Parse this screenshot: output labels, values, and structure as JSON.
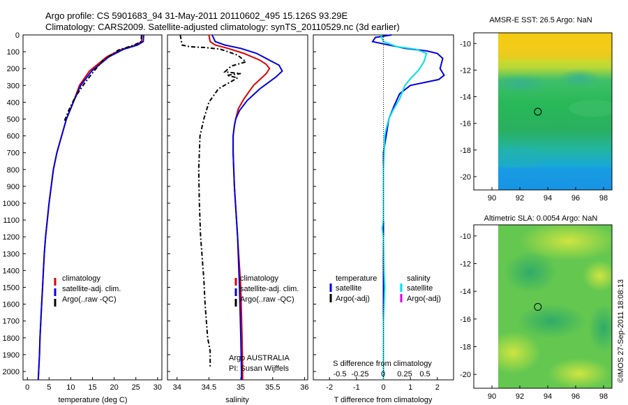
{
  "header": {
    "line1": "Argo profile: CS 5901683_94 31-May-2011 20110602_495 15.126S 93.29E",
    "line2": "Climatology: CARS2009. Satellite-adjusted climatology: synTS_20110529.nc (3d earlier)"
  },
  "footer": {
    "stamp": "©IMOS 27-Sep-2011 18:08:13"
  },
  "colors": {
    "climatology": "#dd0000",
    "satellite": "#0000dd",
    "argo": "#000000",
    "salinity_sat": "#00e0e8",
    "salinity_argo": "#dd00dd"
  },
  "chart_data": [
    {
      "type": "line",
      "id": "temperature",
      "xlabel": "temperature (deg C)",
      "ylabel": "",
      "xlim": [
        -1,
        31
      ],
      "ylim": [
        2050,
        0
      ],
      "xticks": [
        0,
        5,
        10,
        15,
        20,
        25,
        30
      ],
      "yticks": [
        0,
        100,
        200,
        300,
        400,
        500,
        600,
        700,
        800,
        900,
        1000,
        1100,
        1200,
        1300,
        1400,
        1500,
        1600,
        1700,
        1800,
        1900,
        2000
      ],
      "legend": {
        "position": "lower-center",
        "entries": [
          "climatology",
          "satellite-adj. clim.",
          "Argo(..raw -QC)"
        ]
      },
      "series": [
        {
          "name": "climatology",
          "color": "climatology",
          "style": "solid",
          "points": [
            [
              26.4,
              0
            ],
            [
              26.3,
              40
            ],
            [
              25.0,
              60
            ],
            [
              21.8,
              85
            ],
            [
              18.3,
              130
            ],
            [
              14.3,
              215
            ],
            [
              12.0,
              300
            ],
            [
              10.6,
              400
            ],
            [
              9.0,
              500
            ],
            [
              7.9,
              600
            ],
            [
              6.8,
              700
            ],
            [
              6.0,
              800
            ],
            [
              5.5,
              900
            ],
            [
              5.0,
              1000
            ],
            [
              4.6,
              1100
            ],
            [
              4.2,
              1200
            ],
            [
              3.9,
              1300
            ],
            [
              3.7,
              1400
            ],
            [
              3.5,
              1500
            ],
            [
              3.3,
              1600
            ],
            [
              3.1,
              1700
            ],
            [
              2.9,
              1800
            ],
            [
              2.8,
              1900
            ],
            [
              2.6,
              2000
            ],
            [
              2.5,
              2050
            ]
          ]
        },
        {
          "name": "satellite-adj. clim.",
          "color": "satellite",
          "style": "solid",
          "points": [
            [
              26.8,
              0
            ],
            [
              26.7,
              40
            ],
            [
              25.4,
              60
            ],
            [
              22.2,
              85
            ],
            [
              18.8,
              130
            ],
            [
              14.8,
              215
            ],
            [
              12.3,
              300
            ],
            [
              10.6,
              400
            ],
            [
              9.0,
              500
            ],
            [
              7.9,
              600
            ],
            [
              6.8,
              700
            ],
            [
              6.0,
              800
            ],
            [
              5.5,
              900
            ],
            [
              5.0,
              1000
            ],
            [
              4.6,
              1100
            ],
            [
              4.2,
              1200
            ],
            [
              3.9,
              1300
            ],
            [
              3.7,
              1400
            ],
            [
              3.5,
              1500
            ],
            [
              3.3,
              1600
            ],
            [
              3.1,
              1700
            ],
            [
              2.9,
              1800
            ],
            [
              2.8,
              1900
            ],
            [
              2.6,
              2000
            ],
            [
              2.5,
              2050
            ]
          ]
        },
        {
          "name": "Argo(..raw -QC)",
          "color": "argo",
          "style": "dashdot",
          "points": [
            [
              26.3,
              0
            ],
            [
              26.2,
              40
            ],
            [
              24.6,
              60
            ],
            [
              21.0,
              90
            ],
            [
              17.5,
              150
            ],
            [
              15.2,
              220
            ],
            [
              13.1,
              290
            ],
            [
              11.0,
              370
            ],
            [
              9.5,
              450
            ],
            [
              8.4,
              520
            ]
          ]
        }
      ]
    },
    {
      "type": "line",
      "id": "salinity",
      "xlabel": "salinity",
      "xlim": [
        33.85,
        36.05
      ],
      "ylim": [
        2050,
        0
      ],
      "xticks": [
        34,
        34.5,
        35,
        35.5,
        36
      ],
      "legend": {
        "position": "lower-center",
        "entries": [
          "climatology",
          "satellite-adj. clim.",
          "Argo(..raw -QC)"
        ]
      },
      "annotation": {
        "line1": "Argo AUSTRALIA",
        "line2": "PI: Susan Wijffels"
      },
      "series": [
        {
          "name": "climatology",
          "color": "climatology",
          "style": "solid",
          "points": [
            [
              34.5,
              0
            ],
            [
              34.52,
              40
            ],
            [
              34.6,
              60
            ],
            [
              34.8,
              80
            ],
            [
              35.05,
              110
            ],
            [
              35.3,
              150
            ],
            [
              35.4,
              175
            ],
            [
              35.45,
              200
            ],
            [
              35.4,
              230
            ],
            [
              35.2,
              300
            ],
            [
              35.05,
              380
            ],
            [
              34.96,
              440
            ],
            [
              34.92,
              500
            ],
            [
              34.9,
              540
            ],
            [
              34.88,
              600
            ],
            [
              34.88,
              700
            ],
            [
              34.9,
              900
            ],
            [
              34.95,
              1200
            ],
            [
              35.0,
              1500
            ],
            [
              35.02,
              1800
            ],
            [
              35.03,
              2000
            ],
            [
              35.03,
              2050
            ]
          ]
        },
        {
          "name": "satellite-adj. clim.",
          "color": "satellite",
          "style": "solid",
          "points": [
            [
              34.55,
              0
            ],
            [
              34.6,
              40
            ],
            [
              34.75,
              60
            ],
            [
              35.0,
              80
            ],
            [
              35.25,
              110
            ],
            [
              35.45,
              150
            ],
            [
              35.6,
              180
            ],
            [
              35.65,
              215
            ],
            [
              35.55,
              250
            ],
            [
              35.3,
              320
            ],
            [
              35.1,
              390
            ],
            [
              34.98,
              450
            ],
            [
              34.92,
              500
            ],
            [
              34.9,
              540
            ],
            [
              34.88,
              600
            ],
            [
              34.88,
              700
            ],
            [
              34.9,
              900
            ],
            [
              34.95,
              1200
            ],
            [
              34.98,
              1500
            ],
            [
              35.0,
              1800
            ],
            [
              35.01,
              2000
            ],
            [
              35.01,
              2050
            ]
          ]
        },
        {
          "name": "Argo(..raw -QC)",
          "color": "argo",
          "style": "dashdot",
          "points": [
            [
              34.05,
              0
            ],
            [
              34.08,
              60
            ],
            [
              34.2,
              70
            ],
            [
              34.45,
              75
            ],
            [
              34.68,
              85
            ],
            [
              34.8,
              100
            ],
            [
              34.95,
              120
            ],
            [
              35.08,
              160
            ],
            [
              34.85,
              185
            ],
            [
              34.75,
              220
            ],
            [
              35.0,
              230
            ],
            [
              34.78,
              240
            ],
            [
              34.95,
              255
            ],
            [
              34.65,
              320
            ],
            [
              34.5,
              400
            ],
            [
              34.42,
              500
            ],
            [
              34.36,
              600
            ],
            [
              34.34,
              800
            ],
            [
              34.35,
              1000
            ],
            [
              34.37,
              1200
            ],
            [
              34.42,
              1450
            ],
            [
              34.44,
              1600
            ],
            [
              34.48,
              1800
            ],
            [
              34.52,
              1880
            ],
            [
              34.52,
              1970
            ]
          ]
        }
      ]
    },
    {
      "type": "line",
      "id": "difference",
      "xlabel": "T difference from climatology",
      "x2label": "S difference from climatology",
      "xlim": [
        -2.6,
        2.6
      ],
      "ylim": [
        2050,
        0
      ],
      "xticks": [
        -2,
        -1,
        0,
        1,
        2
      ],
      "x2ticks": [
        "-0.5",
        "-0.25",
        "0",
        "0.25",
        "0.5"
      ],
      "legend": {
        "position": "lower-center",
        "temperature_title": "temperature",
        "salinity_title": "salinity",
        "entries": [
          "satellite",
          "Argo(-adj)",
          "satellite",
          "Argo(-adj)"
        ]
      },
      "series": [
        {
          "name": "satellite",
          "group": "temperature",
          "color": "satellite",
          "style": "solid",
          "points": [
            [
              0.3,
              0
            ],
            [
              -0.3,
              15
            ],
            [
              -0.4,
              40
            ],
            [
              0.8,
              80
            ],
            [
              1.6,
              95
            ],
            [
              2.0,
              110
            ],
            [
              2.2,
              140
            ],
            [
              2.1,
              200
            ],
            [
              2.25,
              240
            ],
            [
              2.05,
              265
            ],
            [
              1.0,
              300
            ],
            [
              0.6,
              350
            ],
            [
              0.4,
              420
            ],
            [
              0.2,
              500
            ],
            [
              0.1,
              600
            ],
            [
              0.0,
              700
            ],
            [
              0.0,
              800
            ],
            [
              0.0,
              1000
            ],
            [
              0.0,
              2050
            ]
          ]
        },
        {
          "name": "satellite",
          "group": "salinity",
          "color": "salinity_sat",
          "style": "solid",
          "points": [
            [
              -0.1,
              0
            ],
            [
              0.0,
              40
            ],
            [
              0.5,
              70
            ],
            [
              1.2,
              85
            ],
            [
              1.6,
              110
            ],
            [
              1.5,
              160
            ],
            [
              1.3,
              210
            ],
            [
              1.0,
              260
            ],
            [
              0.8,
              300
            ],
            [
              0.6,
              380
            ],
            [
              0.35,
              450
            ],
            [
              0.2,
              500
            ],
            [
              0.1,
              560
            ],
            [
              0.05,
              600
            ],
            [
              0.0,
              800
            ],
            [
              0.0,
              1100
            ],
            [
              -0.05,
              1150
            ],
            [
              0.0,
              1200
            ],
            [
              0.02,
              1400
            ],
            [
              0.05,
              1500
            ],
            [
              0.0,
              1700
            ],
            [
              0.0,
              2050
            ]
          ]
        },
        {
          "name": "zero reference",
          "group": "reference",
          "color": "argo",
          "style": "dotted",
          "points": [
            [
              0,
              0
            ],
            [
              0,
              2050
            ]
          ]
        }
      ]
    },
    {
      "type": "heatmap",
      "id": "sst-map",
      "title": "AMSR-E SST: 26.5 Argo: NaN",
      "xlim": [
        88.7,
        98.6
      ],
      "ylim": [
        -21.0,
        -9.2
      ],
      "xticks": [
        90,
        92,
        94,
        96,
        98
      ],
      "yticks": [
        -10,
        -12,
        -14,
        -16,
        -18,
        -20
      ],
      "marker": {
        "lon": 93.29,
        "lat": -15.126
      }
    },
    {
      "type": "heatmap",
      "id": "sla-map",
      "title": "Altimetric SLA: 0.0054 Argo: NaN",
      "xlim": [
        88.7,
        98.6
      ],
      "ylim": [
        -21.0,
        -9.2
      ],
      "xticks": [
        90,
        92,
        94,
        96,
        98
      ],
      "yticks": [
        -10,
        -12,
        -14,
        -16,
        -18,
        -20
      ],
      "marker": {
        "lon": 93.29,
        "lat": -15.126
      }
    }
  ]
}
